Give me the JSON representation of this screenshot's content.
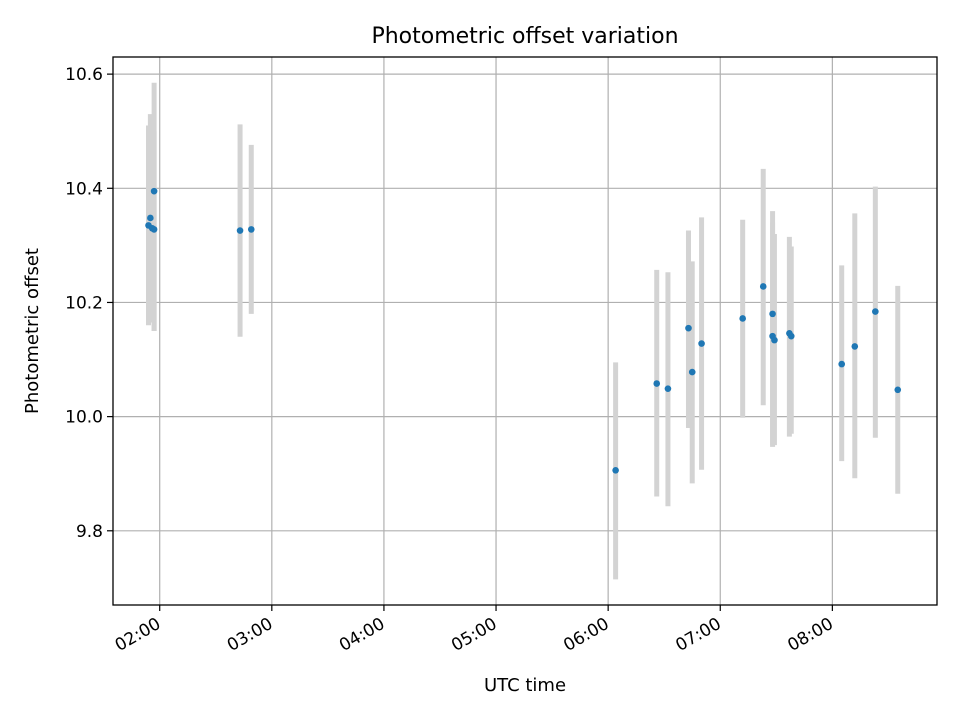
{
  "chart_data": {
    "type": "scatter",
    "title": "Photometric offset variation",
    "xlabel": "UTC time",
    "ylabel": "Photometric offset",
    "x_axis_type": "time",
    "xlim": [
      "01:35",
      "08:56"
    ],
    "ylim": [
      9.67,
      10.63
    ],
    "x_ticks": [
      "02:00",
      "03:00",
      "04:00",
      "05:00",
      "06:00",
      "07:00",
      "08:00"
    ],
    "x_tick_label_rotation": "30deg",
    "y_ticks": [
      9.8,
      10.0,
      10.2,
      10.4,
      10.6
    ],
    "y_tick_labels": [
      "9.8",
      "10.0",
      "10.2",
      "10.4",
      "10.6"
    ],
    "grid": true,
    "marker_color": "#1f77b4",
    "errorbar_color": "#d3d3d3",
    "points": [
      {
        "x": "01:54",
        "y": 10.335,
        "ylow": 10.16,
        "yhigh": 10.51
      },
      {
        "x": "01:55",
        "y": 10.348,
        "ylow": 10.165,
        "yhigh": 10.53
      },
      {
        "x": "01:56",
        "y": 10.33,
        "ylow": 10.165,
        "yhigh": 10.49
      },
      {
        "x": "01:57",
        "y": 10.395,
        "ylow": 10.15,
        "yhigh": 10.585
      },
      {
        "x": "01:57",
        "y": 10.328,
        "ylow": 10.15,
        "yhigh": 10.5
      },
      {
        "x": "02:43",
        "y": 10.326,
        "ylow": 10.14,
        "yhigh": 10.512
      },
      {
        "x": "02:49",
        "y": 10.328,
        "ylow": 10.18,
        "yhigh": 10.476
      },
      {
        "x": "06:04",
        "y": 9.906,
        "ylow": 9.715,
        "yhigh": 10.095
      },
      {
        "x": "06:26",
        "y": 10.058,
        "ylow": 9.86,
        "yhigh": 10.257
      },
      {
        "x": "06:32",
        "y": 10.049,
        "ylow": 9.843,
        "yhigh": 10.253
      },
      {
        "x": "06:43",
        "y": 10.155,
        "ylow": 9.98,
        "yhigh": 10.326
      },
      {
        "x": "06:45",
        "y": 10.078,
        "ylow": 9.883,
        "yhigh": 10.272
      },
      {
        "x": "06:50",
        "y": 10.128,
        "ylow": 9.907,
        "yhigh": 10.349
      },
      {
        "x": "07:12",
        "y": 10.172,
        "ylow": 9.998,
        "yhigh": 10.345
      },
      {
        "x": "07:23",
        "y": 10.228,
        "ylow": 10.02,
        "yhigh": 10.434
      },
      {
        "x": "07:28",
        "y": 10.141,
        "ylow": 9.947,
        "yhigh": 10.36
      },
      {
        "x": "07:28",
        "y": 10.18,
        "ylow": 9.95,
        "yhigh": 10.34
      },
      {
        "x": "07:29",
        "y": 10.134,
        "ylow": 9.95,
        "yhigh": 10.32
      },
      {
        "x": "07:37",
        "y": 10.146,
        "ylow": 9.965,
        "yhigh": 10.315
      },
      {
        "x": "07:38",
        "y": 10.141,
        "ylow": 9.97,
        "yhigh": 10.298
      },
      {
        "x": "08:05",
        "y": 10.092,
        "ylow": 9.922,
        "yhigh": 10.265
      },
      {
        "x": "08:12",
        "y": 10.123,
        "ylow": 9.892,
        "yhigh": 10.356
      },
      {
        "x": "08:23",
        "y": 10.184,
        "ylow": 9.963,
        "yhigh": 10.403
      },
      {
        "x": "08:35",
        "y": 10.047,
        "ylow": 9.865,
        "yhigh": 10.229
      }
    ]
  }
}
